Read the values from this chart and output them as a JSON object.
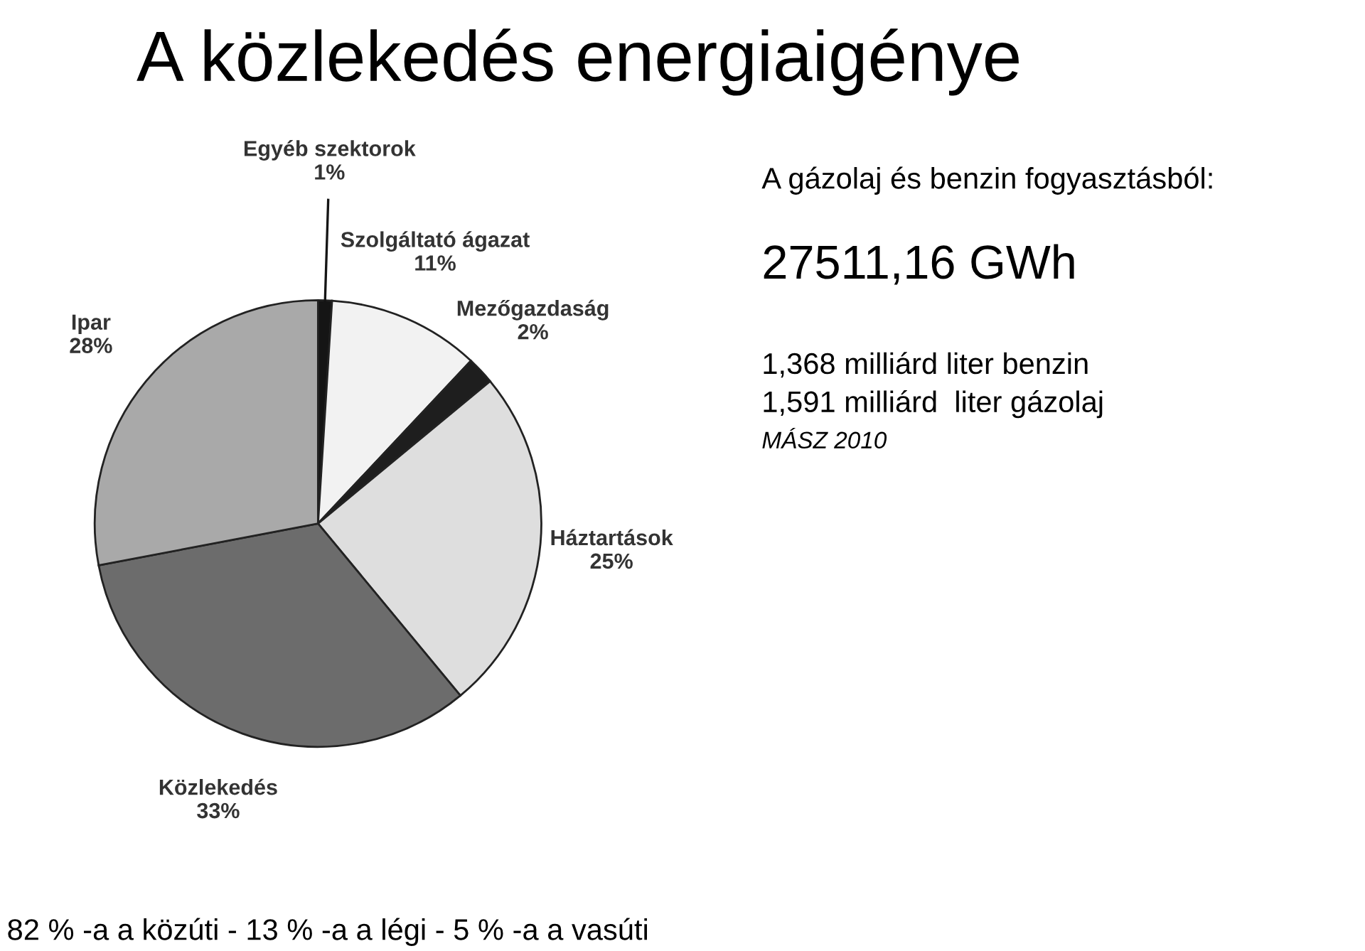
{
  "chart_data": {
    "type": "pie",
    "title": "A közlekedés energiaigénye",
    "categories": [
      "Egyéb szektorok",
      "Szolgáltató ágazat",
      "Mezőgazdaság",
      "Háztartások",
      "Közlekedés",
      "Ipar"
    ],
    "values": [
      1,
      11,
      2,
      25,
      33,
      28
    ],
    "value_labels": [
      "1%",
      "11%",
      "2%",
      "25%",
      "33%",
      "28%"
    ],
    "colors": [
      "#151515",
      "#f2f2f2",
      "#1e1e1e",
      "#dedede",
      "#6c6c6c",
      "#a9a9a9"
    ],
    "annotations": [
      "A gázolaj és benzin fogyasztásból:",
      "27511,16 GWh",
      "1,368 milliárd liter benzin",
      "1,591 milliárd  liter gázolaj",
      "MÁSZ 2010",
      "82 % -a a közúti - 13 % -a a légi - 5 % -a a vasúti"
    ]
  }
}
